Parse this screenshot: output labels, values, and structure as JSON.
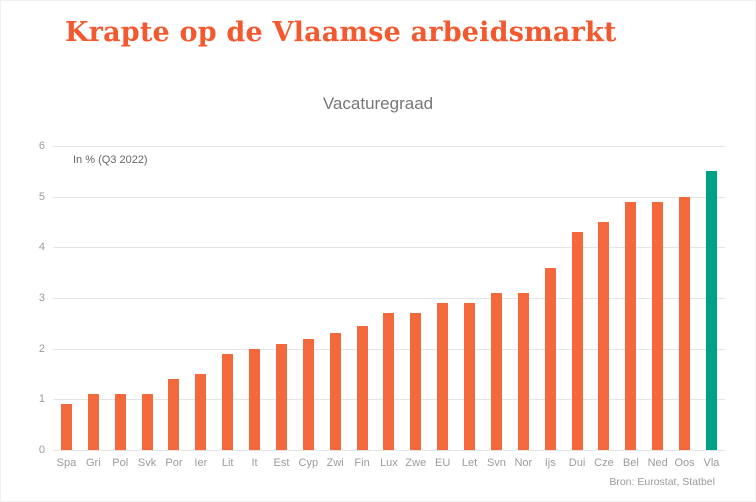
{
  "page": {
    "title": "Krapte op de Vlaamse arbeidsmarkt"
  },
  "colors": {
    "accent_orange": "#f4582e",
    "bar_orange": "#f4693c",
    "highlight_teal": "#00a189",
    "grid_gray": "#e4e4e4",
    "text_gray": "#9b9b9b"
  },
  "chart_data": {
    "type": "bar",
    "title": "Vacaturegraad",
    "annotation": "In % (Q3 2022)",
    "source": "Bron: Eurostat, Statbel",
    "categories": [
      "Spa",
      "Gri",
      "Pol",
      "Svk",
      "Por",
      "Ier",
      "Lit",
      "It",
      "Est",
      "Cyp",
      "Zwi",
      "Fin",
      "Lux",
      "Zwe",
      "EU",
      "Let",
      "Svn",
      "Nor",
      "Ijs",
      "Dui",
      "Cze",
      "Bel",
      "Ned",
      "Oos",
      "Vla"
    ],
    "values": [
      0.9,
      1.1,
      1.1,
      1.1,
      1.4,
      1.5,
      1.9,
      2.0,
      2.1,
      2.2,
      2.3,
      2.45,
      2.7,
      2.7,
      2.9,
      2.9,
      3.1,
      3.1,
      3.6,
      4.3,
      4.5,
      4.9,
      4.9,
      5.0,
      5.5
    ],
    "xlabel": "",
    "ylabel": "",
    "ylim": [
      0,
      6
    ],
    "yticks": [
      0,
      1,
      2,
      3,
      4,
      5,
      6
    ],
    "grid": true,
    "legend": "none",
    "bar_color": "#f4693c",
    "highlight_category": "Vla",
    "highlight_color": "#00a189"
  }
}
